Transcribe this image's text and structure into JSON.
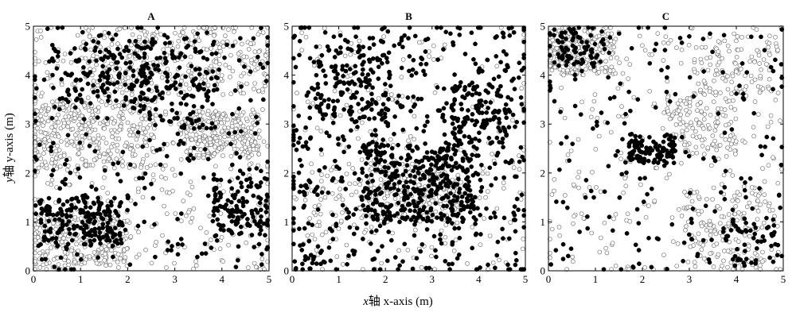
{
  "figure": {
    "xlabel": {
      "italic": "x",
      "cjk": "轴",
      "rest": " x-axis (m)"
    },
    "ylabel": {
      "italic": "y",
      "cjk": "轴",
      "rest": " y-axis (m)"
    },
    "colors": {
      "filled": "#000000",
      "open_stroke": "#666666",
      "open_fill": "#ffffff"
    }
  },
  "chart_data": [
    {
      "type": "scatter",
      "panel_label": "A",
      "xlim": [
        0,
        5
      ],
      "ylim": [
        0,
        5
      ],
      "xticks": [
        0,
        1,
        2,
        3,
        4,
        5
      ],
      "yticks": [
        0,
        1,
        2,
        3,
        4,
        5
      ],
      "grid": false,
      "legend": "none",
      "series": [
        {
          "marker": "filled-circle",
          "approx_count": 850,
          "density_regions": [
            [
              2.5,
              2.5,
              2.6,
              2.6,
              0.45
            ],
            [
              1.0,
              1.0,
              0.9,
              0.5,
              0.25
            ],
            [
              4.4,
              1.3,
              0.6,
              0.6,
              0.2
            ],
            [
              1.5,
              4.0,
              1.1,
              0.7,
              0.2
            ],
            [
              3.0,
              3.8,
              0.9,
              0.9,
              0.15
            ]
          ]
        },
        {
          "marker": "open-circle",
          "approx_count": 1500,
          "density_regions": [
            [
              2.5,
              2.5,
              2.6,
              2.6,
              0.3
            ],
            [
              1.2,
              2.8,
              1.4,
              0.7,
              0.25
            ],
            [
              1.0,
              0.6,
              1.0,
              0.5,
              0.15
            ],
            [
              3.0,
              4.3,
              2.0,
              0.7,
              0.15
            ],
            [
              4.0,
              2.8,
              0.8,
              0.5,
              0.15
            ]
          ]
        }
      ]
    },
    {
      "type": "scatter",
      "panel_label": "B",
      "xlim": [
        0,
        5
      ],
      "ylim": [
        0,
        5
      ],
      "xticks": [
        0,
        1,
        2,
        3,
        4,
        5
      ],
      "yticks": [
        0,
        1,
        2,
        3,
        4,
        5
      ],
      "grid": false,
      "legend": "none",
      "series": [
        {
          "marker": "filled-circle",
          "approx_count": 1150,
          "density_regions": [
            [
              2.5,
              2.5,
              2.6,
              2.6,
              0.5
            ],
            [
              2.7,
              1.8,
              1.2,
              0.8,
              0.3
            ],
            [
              1.3,
              3.8,
              0.8,
              0.8,
              0.1
            ],
            [
              4.0,
              3.2,
              0.6,
              0.6,
              0.1
            ]
          ]
        },
        {
          "marker": "open-circle",
          "approx_count": 450,
          "density_regions": [
            [
              2.5,
              2.5,
              2.6,
              2.6,
              0.5
            ],
            [
              2.6,
              1.6,
              1.0,
              0.6,
              0.4
            ],
            [
              1.0,
              1.3,
              0.8,
              0.8,
              0.1
            ]
          ]
        }
      ]
    },
    {
      "type": "scatter",
      "panel_label": "C",
      "xlim": [
        0,
        5
      ],
      "ylim": [
        0,
        5
      ],
      "xticks": [
        0,
        1,
        2,
        3,
        4,
        5
      ],
      "yticks": [
        0,
        1,
        2,
        3,
        4,
        5
      ],
      "grid": false,
      "legend": "none",
      "series": [
        {
          "marker": "filled-circle",
          "approx_count": 420,
          "density_regions": [
            [
              2.5,
              2.5,
              2.6,
              2.6,
              0.45
            ],
            [
              2.2,
              2.5,
              0.5,
              0.3,
              0.25
            ],
            [
              4.3,
              0.6,
              0.6,
              0.5,
              0.15
            ],
            [
              0.6,
              4.6,
              0.6,
              0.4,
              0.15
            ]
          ]
        },
        {
          "marker": "open-circle",
          "approx_count": 850,
          "density_regions": [
            [
              2.5,
              2.5,
              2.6,
              2.6,
              0.35
            ],
            [
              0.7,
              4.5,
              0.8,
              0.5,
              0.25
            ],
            [
              3.2,
              3.0,
              0.8,
              0.6,
              0.15
            ],
            [
              4.0,
              4.2,
              0.9,
              0.6,
              0.1
            ],
            [
              3.8,
              0.8,
              1.0,
              0.8,
              0.15
            ]
          ]
        }
      ]
    }
  ]
}
